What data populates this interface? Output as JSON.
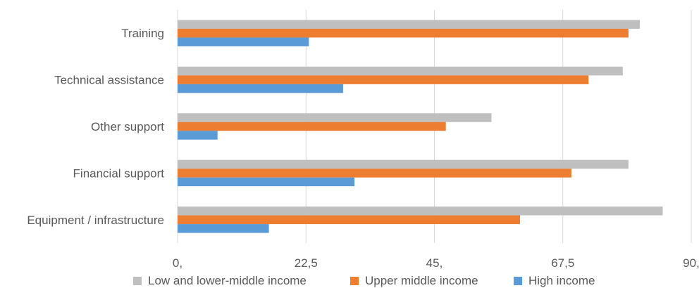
{
  "chart_data": {
    "type": "bar",
    "orientation": "horizontal",
    "title": "",
    "xlabel": "",
    "ylabel": "",
    "categories": [
      "Training",
      "Technical assistance",
      "Other support",
      "Financial support",
      "Equipment / infrastructure"
    ],
    "series": [
      {
        "name": "Low and lower-middle income",
        "color": "#bfbfbf",
        "values": [
          81,
          78,
          55,
          79,
          85
        ]
      },
      {
        "name": "Upper middle income",
        "color": "#ed7d31",
        "values": [
          79,
          72,
          47,
          69,
          60
        ]
      },
      {
        "name": "High income",
        "color": "#5b9bd5",
        "values": [
          23,
          29,
          7,
          31,
          16
        ]
      }
    ],
    "xlim": [
      0,
      90
    ],
    "xticks": [
      "0,",
      "22,5",
      "45,",
      "67,5",
      "90,"
    ],
    "xtick_values": [
      0,
      22.5,
      45,
      67.5,
      90
    ],
    "grid": true,
    "legend_position": "bottom"
  }
}
